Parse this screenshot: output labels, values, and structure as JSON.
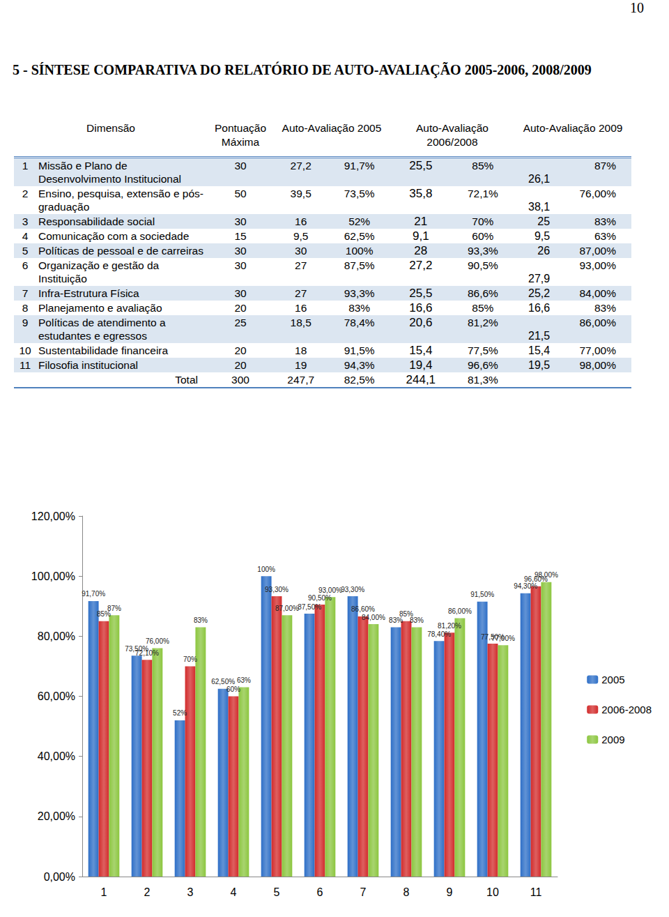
{
  "page": "10",
  "heading": "5 - SÍNTESE COMPARATIVA DO RELATÓRIO DE AUTO-AVALIAÇÃO 2005-2006, 2008/2009",
  "table": {
    "header": [
      "Dimensão",
      "Pontuação Máxima",
      "Auto-Avaliação 2005",
      "Auto-Avaliação 2006/2008",
      "Auto-Avaliação 2009"
    ],
    "rows": [
      {
        "num": "1",
        "dimension": "Missão e Plano de Desenvolvimento Institucional",
        "max": "30",
        "a2005": [
          "27,2",
          "91,7%"
        ],
        "a2006": [
          "25,5",
          "85%"
        ],
        "a2009": [
          "26,1",
          "87%"
        ]
      },
      {
        "num": "2",
        "dimension": "Ensino, pesquisa, extensão e pós-graduação",
        "max": "50",
        "a2005": [
          "39,5",
          "73,5%"
        ],
        "a2006": [
          "35,8",
          "72,1%"
        ],
        "a2009": [
          "38,1",
          "76,00%"
        ]
      },
      {
        "num": "3",
        "dimension": "Responsabilidade social",
        "max": "30",
        "a2005": [
          "16",
          "52%"
        ],
        "a2006": [
          "21",
          "70%"
        ],
        "a2009": [
          "25",
          "83%"
        ]
      },
      {
        "num": "4",
        "dimension": "Comunicação com a sociedade",
        "max": "15",
        "a2005": [
          "9,5",
          "62,5%"
        ],
        "a2006": [
          "9,1",
          "60%"
        ],
        "a2009": [
          "9,5",
          "63%"
        ]
      },
      {
        "num": "5",
        "dimension": "Políticas de pessoal e de carreiras",
        "max": "30",
        "a2005": [
          "30",
          "100%"
        ],
        "a2006": [
          "28",
          "93,3%"
        ],
        "a2009": [
          "26",
          "87,00%"
        ]
      },
      {
        "num": "6",
        "dimension": "Organização e gestão da Instituição",
        "max": "30",
        "a2005": [
          "27",
          "87,5%"
        ],
        "a2006": [
          "27,2",
          "90,5%"
        ],
        "a2009": [
          "27,9",
          "93,00%"
        ]
      },
      {
        "num": "7",
        "dimension": "Infra-Estrutura Física",
        "max": "30",
        "a2005": [
          "27",
          "93,3%"
        ],
        "a2006": [
          "25,5",
          "86,6%"
        ],
        "a2009": [
          "25,2",
          "84,00%"
        ]
      },
      {
        "num": "8",
        "dimension": "Planejamento e avaliação",
        "max": "20",
        "a2005": [
          "16",
          "83%"
        ],
        "a2006": [
          "16,6",
          "85%"
        ],
        "a2009": [
          "16,6",
          "83%"
        ]
      },
      {
        "num": "9",
        "dimension": "Políticas de atendimento a estudantes e egressos",
        "max": "25",
        "a2005": [
          "18,5",
          "78,4%"
        ],
        "a2006": [
          "20,6",
          "81,2%"
        ],
        "a2009": [
          "21,5",
          "86,00%"
        ]
      },
      {
        "num": "10",
        "dimension": "Sustentabilidade financeira",
        "max": "20",
        "a2005": [
          "18",
          "91,5%"
        ],
        "a2006": [
          "15,4",
          "77,5%"
        ],
        "a2009": [
          "15,4",
          "77,00%"
        ]
      },
      {
        "num": "11",
        "dimension": "Filosofia institucional",
        "max": "20",
        "a2005": [
          "19",
          "94,3%"
        ],
        "a2006": [
          "19,4",
          "96,6%"
        ],
        "a2009": [
          "19,5",
          "98,00%"
        ]
      }
    ],
    "total": {
      "label": "Total",
      "max": "300",
      "a2005": [
        "247,7",
        "82,5%"
      ],
      "a2006": [
        "244,1",
        "81,3%"
      ]
    }
  },
  "chart_data": {
    "type": "bar",
    "categories": [
      "1",
      "2",
      "3",
      "4",
      "5",
      "6",
      "7",
      "8",
      "9",
      "10",
      "11"
    ],
    "series": [
      {
        "name": "2005",
        "color": "#2e6fc7",
        "values": [
          91.7,
          73.5,
          52,
          62.5,
          100,
          87.5,
          93.3,
          83,
          78.4,
          91.5,
          94.3
        ],
        "value_labels": [
          "91,70%",
          "73,50%",
          "52%",
          "62,50%",
          "100%",
          "87,50%",
          "93,30%",
          "83%",
          "78,40%",
          "91,50%",
          "94,30%"
        ]
      },
      {
        "name": "2006-2008",
        "color": "#d22b2b",
        "values": [
          85,
          72.1,
          70,
          60,
          93.3,
          90.5,
          86.6,
          85,
          81.2,
          77.5,
          96.6
        ],
        "value_labels": [
          "85%",
          "72,10%",
          "70%",
          "60%",
          "93,30%",
          "90,50%",
          "86,60%",
          "85%",
          "81,20%",
          "77,50%",
          "96,60%"
        ]
      },
      {
        "name": "2009",
        "color": "#8cc63f",
        "values": [
          87,
          76,
          83,
          63,
          87,
          93,
          84,
          83,
          86,
          77,
          98
        ],
        "value_labels": [
          "87%",
          "76,00%",
          "83%",
          "63%",
          "87,00%",
          "93,00%",
          "84,00%",
          "83%",
          "86,00%",
          "77,00%",
          "98,00%"
        ]
      }
    ],
    "ylim": [
      0,
      120
    ],
    "yticks": [
      {
        "value": 0,
        "label": "0,00%"
      },
      {
        "value": 20,
        "label": "20,00%"
      },
      {
        "value": 40,
        "label": "40,00%"
      },
      {
        "value": 60,
        "label": "60,00%"
      },
      {
        "value": 80,
        "label": "80,00%"
      },
      {
        "value": 100,
        "label": "100,00%"
      },
      {
        "value": 120,
        "label": "120,00%"
      }
    ],
    "grid": false,
    "legend": "right",
    "data_labels": true
  }
}
